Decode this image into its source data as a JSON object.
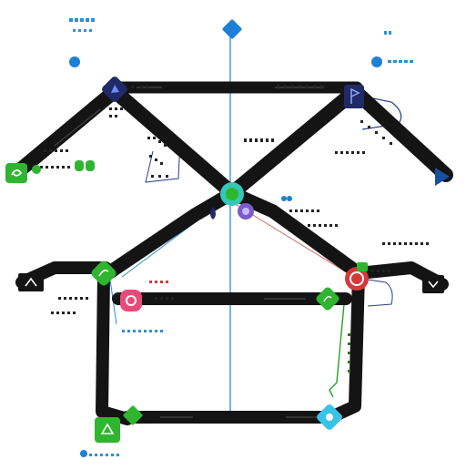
{
  "colors": {
    "track": "#141414",
    "track_accent": "#2a2a2a",
    "blue": "#1e7fd6",
    "blue_dark": "#1a4fa0",
    "navy": "#1f2a66",
    "green": "#2fb52f",
    "green_dark": "#1e8a1e",
    "red": "#d23a3a",
    "pink": "#e84a7a",
    "teal": "#36c7b8",
    "purple": "#7a5cc9",
    "cyan": "#39c3e8",
    "olive": "#3d6b1e",
    "thin_blue": "#2b8fd8",
    "thin_red": "#d46a6a",
    "thin_navy": "#2a3f8a",
    "thin_green": "#2aa02a"
  },
  "icons": {
    "top_diamond": "diamond-icon",
    "left_edge_node": "swirl-icon",
    "apex_left": "pennant-icon",
    "apex_right": "flag-icon",
    "hub": "orbit-icon",
    "hub_secondary": "gem-icon",
    "hub_drop": "drop-icon",
    "right_arrow": "play-icon",
    "left_eave": "chevron-icon",
    "right_eave": "hook-icon",
    "lower_left_green": "leaf-icon",
    "lower_left_pink": "ring-icon",
    "lower_right_red": "target-icon",
    "lower_right_green": "leaf-icon",
    "bottom_left_green": "cube-icon",
    "bottom_mid_green": "diamond-icon",
    "bottom_right_cyan": "drop-icon"
  },
  "legend_dots": {
    "top_left_dot": "blue",
    "top_right_dot": "blue",
    "bottom_left_dot": "blue"
  }
}
